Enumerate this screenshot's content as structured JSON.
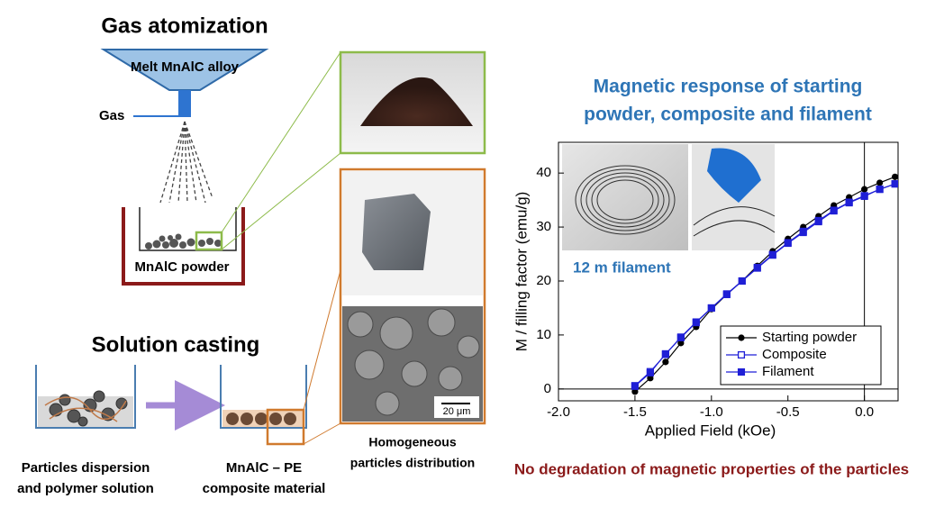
{
  "diagram": {
    "gas_title": "Gas atomization",
    "melt_label": "Melt MnAlC alloy",
    "gas_label": "Gas",
    "powder_label": "MnAlC powder",
    "casting_title": "Solution casting",
    "dispersion_caption": [
      "Particles dispersion",
      "and polymer solution"
    ],
    "composite_caption": [
      "MnAlC – PE",
      "composite material"
    ],
    "distribution_caption": [
      "Homogeneous",
      "particles distribution"
    ],
    "scale_bar": "20 μm"
  },
  "chart_data": {
    "type": "line",
    "title": [
      "Magnetic response of starting",
      "powder, composite and filament"
    ],
    "inset_label": "12 m filament",
    "caption": "No degradation of magnetic properties of the particles",
    "x_label": "Applied Field (kOe)",
    "y_label": "M / filling factor (emu/g)",
    "x": [
      -1.5,
      -1.4,
      -1.3,
      -1.2,
      -1.1,
      -1.0,
      -0.9,
      -0.8,
      -0.7,
      -0.6,
      -0.5,
      -0.4,
      -0.3,
      -0.2,
      -0.1,
      0.0,
      0.1,
      0.2
    ],
    "series": [
      {
        "name": "Starting powder",
        "color": "#000000",
        "marker": "circle",
        "values": [
          -0.5,
          2,
          5,
          8.5,
          11.5,
          14.8,
          17.5,
          20,
          22.8,
          25.5,
          27.8,
          30,
          32,
          34,
          35.5,
          37,
          38.2,
          39.3
        ]
      },
      {
        "name": "Composite",
        "color": "#1f1fd6",
        "marker": "open-square",
        "values": [
          0.6,
          3.2,
          6.4,
          9.6,
          12.4,
          15,
          17.6,
          20,
          22.5,
          24.9,
          27.1,
          29.2,
          31.2,
          33.1,
          34.6,
          35.8,
          37,
          38
        ]
      },
      {
        "name": "Filament",
        "color": "#1f1fd6",
        "marker": "square",
        "values": [
          0.5,
          3,
          6.5,
          9.5,
          12.3,
          15,
          17.5,
          20,
          22.4,
          24.8,
          27,
          29,
          31,
          33,
          34.5,
          35.7,
          37,
          38
        ]
      }
    ],
    "xlim": [
      -2.0,
      0.22
    ],
    "ylim": [
      -2.2,
      45.7
    ],
    "xticks": [
      {
        "value": -2,
        "label": "-2.0"
      },
      -1.5,
      {
        "value": -1,
        "label": "-1.0"
      },
      -0.5,
      {
        "value": 0,
        "label": "0.0"
      }
    ],
    "yticks": [
      0,
      10,
      20,
      30,
      40
    ],
    "legend": "lower right"
  }
}
